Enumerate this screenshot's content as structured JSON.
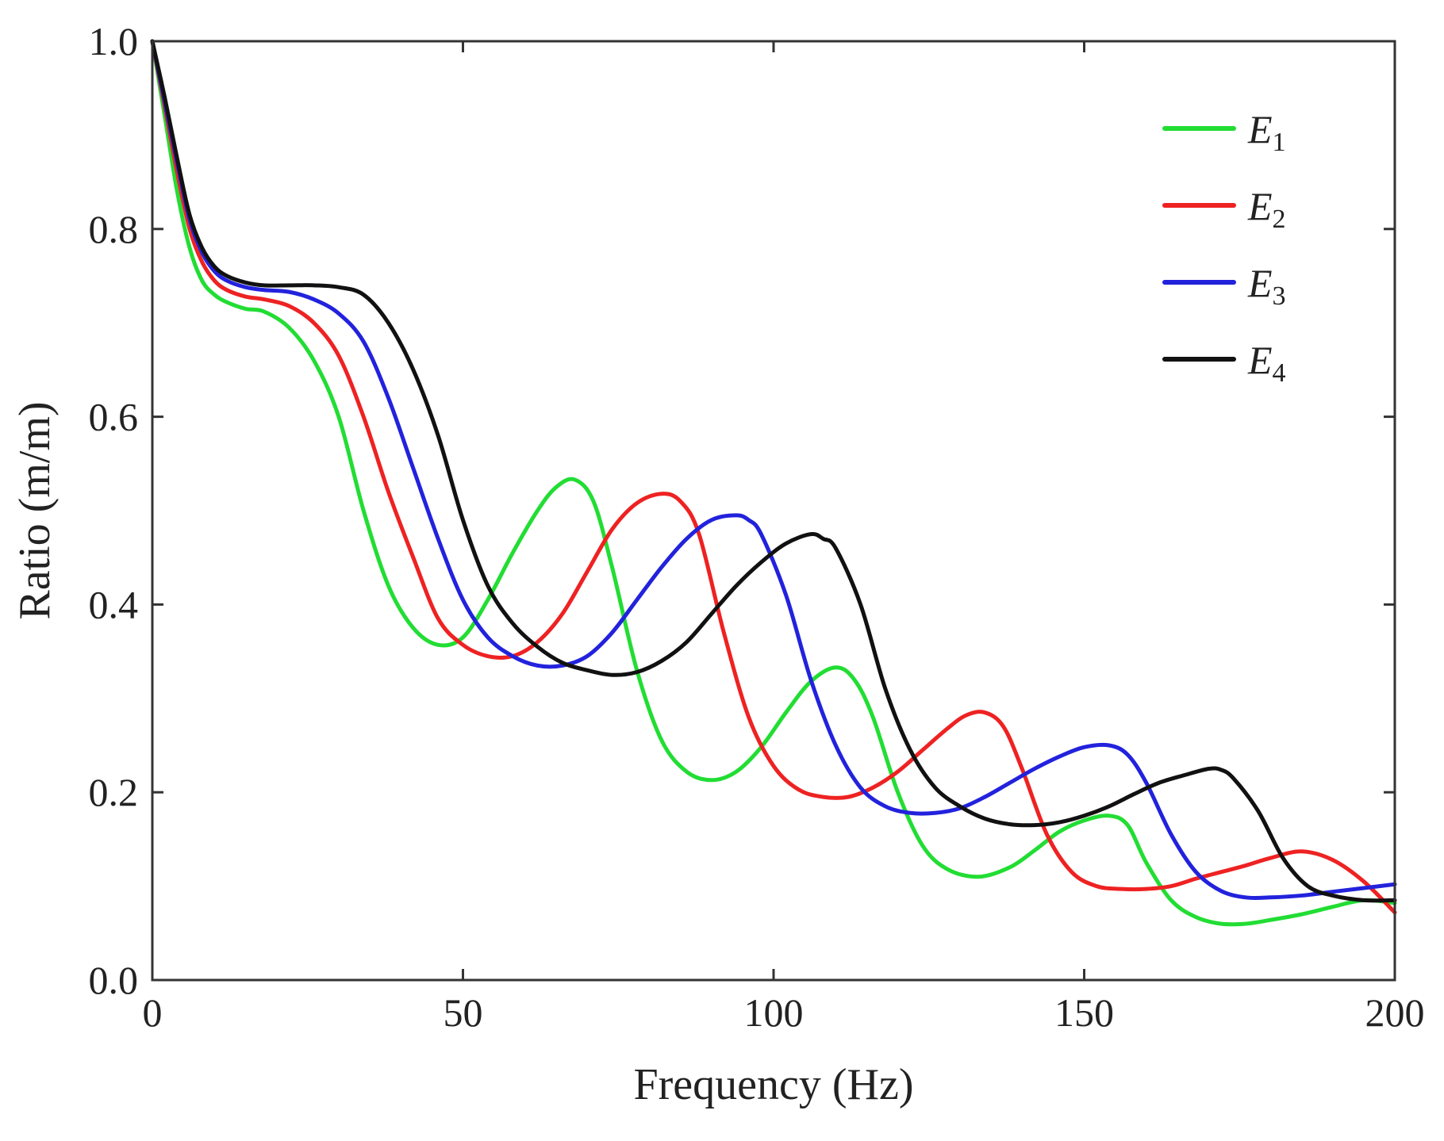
{
  "chart_data": {
    "type": "line",
    "title": "",
    "xlabel": "Frequency (Hz)",
    "ylabel": "Ratio (m/m)",
    "xlim": [
      0,
      200
    ],
    "ylim": [
      0.0,
      1.0
    ],
    "xticks": [
      0,
      50,
      100,
      150,
      200
    ],
    "xtick_labels": [
      "0",
      "50",
      "100",
      "150",
      "200"
    ],
    "yticks": [
      0.0,
      0.2,
      0.4,
      0.6,
      0.8,
      1.0
    ],
    "ytick_labels": [
      "0.0",
      "0.2",
      "0.4",
      "0.6",
      "0.8",
      "1.0"
    ],
    "grid": false,
    "legend_position": "top-right",
    "series": [
      {
        "name": "E",
        "subscript": "1",
        "color": "#22dd33",
        "x": [
          0,
          2,
          4,
          6,
          8,
          10,
          12,
          15,
          18,
          22,
          26,
          30,
          34,
          38,
          42,
          46,
          50,
          54,
          58,
          62,
          65,
          68,
          71,
          74,
          78,
          82,
          86,
          90,
          94,
          98,
          102,
          106,
          110,
          113,
          116,
          120,
          124,
          128,
          133,
          138,
          142,
          146,
          150,
          154,
          157,
          160,
          164,
          168,
          172,
          176,
          180,
          185,
          190,
          195,
          200
        ],
        "y": [
          1.0,
          0.92,
          0.84,
          0.78,
          0.745,
          0.73,
          0.722,
          0.715,
          0.712,
          0.695,
          0.66,
          0.6,
          0.5,
          0.42,
          0.375,
          0.357,
          0.365,
          0.405,
          0.455,
          0.5,
          0.525,
          0.533,
          0.51,
          0.44,
          0.33,
          0.255,
          0.222,
          0.213,
          0.222,
          0.248,
          0.285,
          0.318,
          0.333,
          0.32,
          0.28,
          0.2,
          0.143,
          0.118,
          0.11,
          0.12,
          0.138,
          0.158,
          0.17,
          0.175,
          0.165,
          0.125,
          0.085,
          0.067,
          0.06,
          0.06,
          0.064,
          0.07,
          0.078,
          0.085,
          0.082
        ]
      },
      {
        "name": "E",
        "subscript": "2",
        "color": "#ee2222",
        "x": [
          0,
          2,
          4,
          6,
          8,
          10,
          12,
          15,
          18,
          22,
          26,
          30,
          34,
          38,
          42,
          46,
          50,
          54,
          58,
          62,
          66,
          70,
          74,
          78,
          82,
          85,
          88,
          92,
          96,
          100,
          104,
          108,
          112,
          116,
          120,
          124,
          128,
          131,
          134,
          137,
          140,
          144,
          148,
          152,
          156,
          160,
          164,
          168,
          172,
          176,
          180,
          185,
          190,
          195,
          200
        ],
        "y": [
          1.0,
          0.93,
          0.86,
          0.8,
          0.765,
          0.745,
          0.735,
          0.728,
          0.725,
          0.718,
          0.7,
          0.665,
          0.6,
          0.52,
          0.45,
          0.385,
          0.357,
          0.345,
          0.345,
          0.36,
          0.39,
          0.435,
          0.48,
          0.508,
          0.518,
          0.51,
          0.475,
          0.37,
          0.28,
          0.228,
          0.203,
          0.195,
          0.195,
          0.205,
          0.222,
          0.245,
          0.268,
          0.282,
          0.285,
          0.27,
          0.225,
          0.155,
          0.115,
          0.1,
          0.097,
          0.097,
          0.1,
          0.108,
          0.115,
          0.122,
          0.13,
          0.137,
          0.128,
          0.105,
          0.072
        ]
      },
      {
        "name": "E",
        "subscript": "3",
        "color": "#2222dd",
        "x": [
          0,
          2,
          4,
          6,
          8,
          10,
          12,
          15,
          18,
          22,
          26,
          30,
          34,
          38,
          42,
          46,
          50,
          54,
          58,
          62,
          66,
          70,
          74,
          78,
          82,
          86,
          90,
          94,
          96,
          98,
          102,
          106,
          110,
          114,
          118,
          122,
          126,
          130,
          134,
          138,
          142,
          146,
          150,
          154,
          157,
          160,
          164,
          168,
          172,
          176,
          180,
          185,
          190,
          195,
          200
        ],
        "y": [
          1.0,
          0.935,
          0.87,
          0.81,
          0.775,
          0.755,
          0.745,
          0.738,
          0.735,
          0.733,
          0.725,
          0.71,
          0.68,
          0.62,
          0.545,
          0.47,
          0.405,
          0.365,
          0.345,
          0.335,
          0.335,
          0.345,
          0.37,
          0.405,
          0.44,
          0.47,
          0.49,
          0.495,
          0.49,
          0.475,
          0.41,
          0.32,
          0.25,
          0.205,
          0.185,
          0.178,
          0.178,
          0.183,
          0.195,
          0.21,
          0.225,
          0.238,
          0.248,
          0.25,
          0.24,
          0.21,
          0.155,
          0.115,
          0.095,
          0.088,
          0.088,
          0.09,
          0.094,
          0.098,
          0.102
        ]
      },
      {
        "name": "E",
        "subscript": "4",
        "color": "#111111",
        "x": [
          0,
          2,
          4,
          6,
          8,
          10,
          12,
          15,
          18,
          22,
          26,
          30,
          34,
          38,
          42,
          46,
          50,
          54,
          58,
          62,
          66,
          70,
          74,
          78,
          82,
          86,
          90,
          94,
          98,
          102,
          106,
          108,
          110,
          114,
          118,
          122,
          126,
          130,
          134,
          138,
          142,
          146,
          150,
          154,
          158,
          162,
          166,
          170,
          172,
          174,
          178,
          182,
          186,
          190,
          195,
          200
        ],
        "y": [
          1.0,
          0.94,
          0.875,
          0.815,
          0.78,
          0.76,
          0.75,
          0.743,
          0.74,
          0.74,
          0.74,
          0.738,
          0.73,
          0.7,
          0.65,
          0.58,
          0.49,
          0.42,
          0.38,
          0.355,
          0.338,
          0.33,
          0.325,
          0.328,
          0.34,
          0.36,
          0.39,
          0.42,
          0.445,
          0.465,
          0.475,
          0.47,
          0.46,
          0.4,
          0.31,
          0.245,
          0.205,
          0.185,
          0.172,
          0.166,
          0.165,
          0.168,
          0.175,
          0.185,
          0.198,
          0.21,
          0.218,
          0.225,
          0.224,
          0.215,
          0.18,
          0.13,
          0.1,
          0.09,
          0.085,
          0.085
        ]
      }
    ]
  }
}
